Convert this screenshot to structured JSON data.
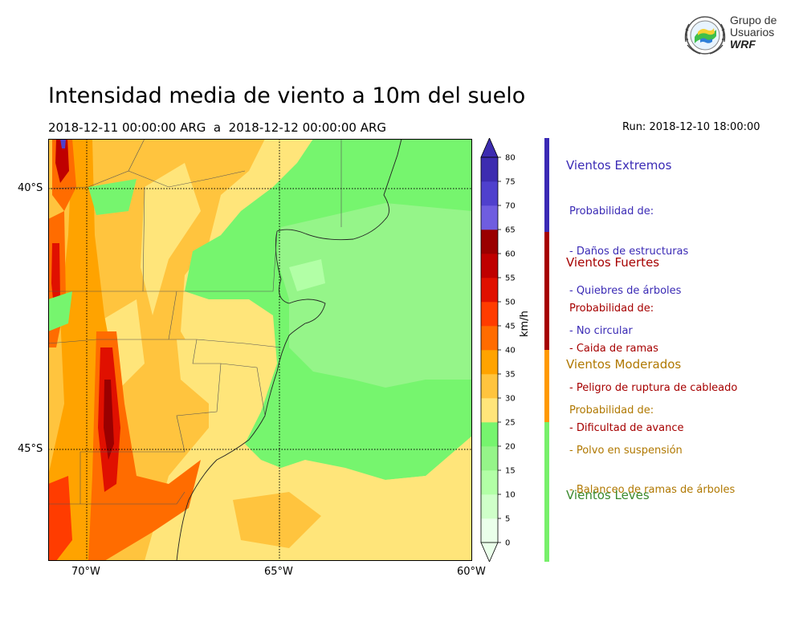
{
  "header": {
    "title": "Intensidad media de viento a 10m del suelo",
    "period": "2018-12-11 00:00:00 ARG  a  2018-12-12 00:00:00 ARG",
    "run": "Run: 2018-12-10 18:00:00"
  },
  "logo": {
    "line1": "Grupo de",
    "line2": "Usuarios",
    "line3": "WRF"
  },
  "map": {
    "lon_range": [
      -71,
      -60
    ],
    "lat_range": [
      -47.8,
      -39.6
    ],
    "lon_ticks": [
      "70°W",
      "65°W",
      "60°W"
    ],
    "lat_ticks": [
      "40°S",
      "45°S"
    ]
  },
  "colorbar": {
    "unit": "km/h",
    "levels": [
      "0",
      "5",
      "10",
      "15",
      "20",
      "25",
      "30",
      "35",
      "40",
      "45",
      "50",
      "55",
      "60",
      "65",
      "70",
      "75",
      "80"
    ],
    "colors": [
      "#eaffea",
      "#cfffc9",
      "#b2ffa6",
      "#95f589",
      "#76f56e",
      "#ffe57a",
      "#ffc43e",
      "#ffa300",
      "#ff6c00",
      "#ff3c00",
      "#e01000",
      "#bf0000",
      "#9a0000",
      "#6f5de0",
      "#4f40cd",
      "#3d2cb0"
    ],
    "extend_low_color": "#eaffea",
    "extend_high_color": "#3d2cb0"
  },
  "categories": [
    {
      "title": "Vientos Extremos",
      "color": "#3a2ab5",
      "lines": [
        "Probabilidad de:",
        "- Daños de estructuras",
        "- Quiebres de árboles",
        "- No circular"
      ]
    },
    {
      "title": "Vientos Fuertes",
      "color": "#a60000",
      "lines": [
        "Probabilidad de:",
        "- Caida de ramas",
        "- Peligro de ruptura de cableado",
        "- Dificultad de avance"
      ]
    },
    {
      "title": "Vientos Moderados",
      "color": "#b07800",
      "lines": [
        "Probabilidad de:",
        "- Polvo en suspensión",
        "- Balanceo de ramas de árboles"
      ]
    },
    {
      "title": "Vientos Leves",
      "color": "#3c8a2e",
      "lines": []
    }
  ],
  "category_bar_colors": [
    "#3a2ab5",
    "#a60000",
    "#ff9900",
    "#77f06a"
  ]
}
